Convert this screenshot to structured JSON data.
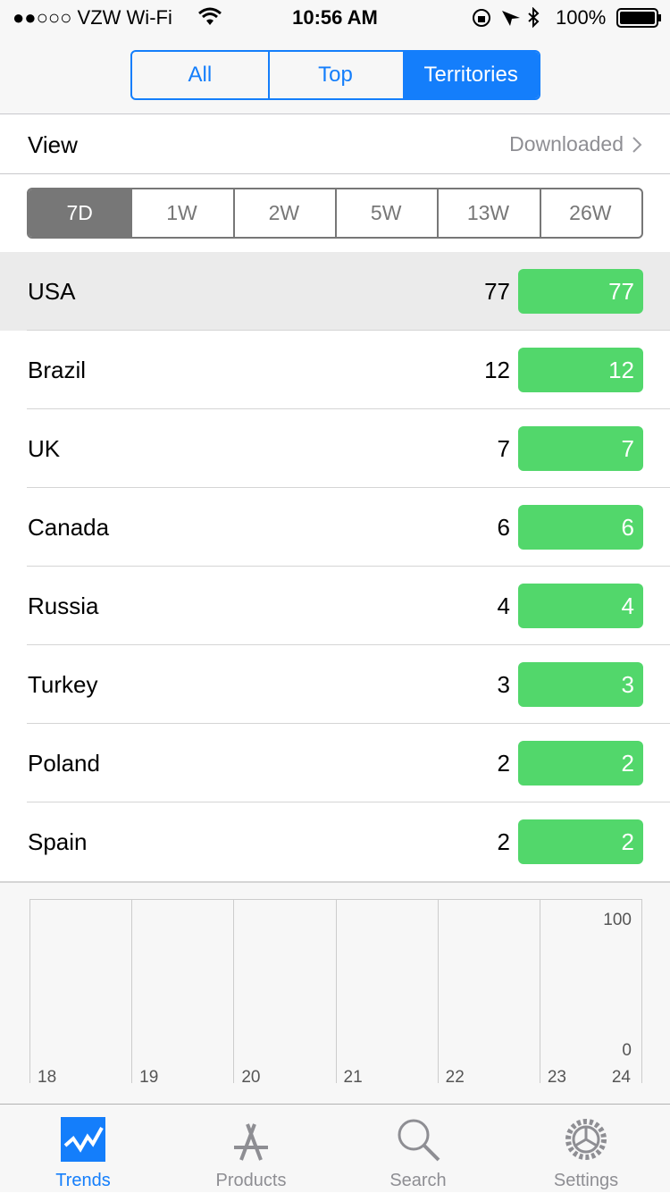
{
  "status_bar": {
    "carrier": "●●○○○ VZW Wi-Fi",
    "time": "10:56 AM",
    "battery": "100%"
  },
  "segments": {
    "options": [
      "All",
      "Top",
      "Territories"
    ],
    "selected": 2
  },
  "view": {
    "label": "View",
    "value": "Downloaded"
  },
  "periods": {
    "options": [
      "7D",
      "1W",
      "2W",
      "5W",
      "13W",
      "26W"
    ],
    "selected": 0
  },
  "rows": [
    {
      "name": "USA",
      "value": 77
    },
    {
      "name": "Brazil",
      "value": 12
    },
    {
      "name": "UK",
      "value": 7
    },
    {
      "name": "Canada",
      "value": 6
    },
    {
      "name": "Russia",
      "value": 4
    },
    {
      "name": "Turkey",
      "value": 3
    },
    {
      "name": "Poland",
      "value": 2
    },
    {
      "name": "Spain",
      "value": 2
    }
  ],
  "selected_row": 0,
  "chart": {
    "xticks": [
      18,
      19,
      20,
      21,
      22,
      23,
      24
    ],
    "yticks": [
      0,
      100
    ]
  },
  "tabs": {
    "items": [
      "Trends",
      "Products",
      "Search",
      "Settings"
    ],
    "selected": 0
  }
}
